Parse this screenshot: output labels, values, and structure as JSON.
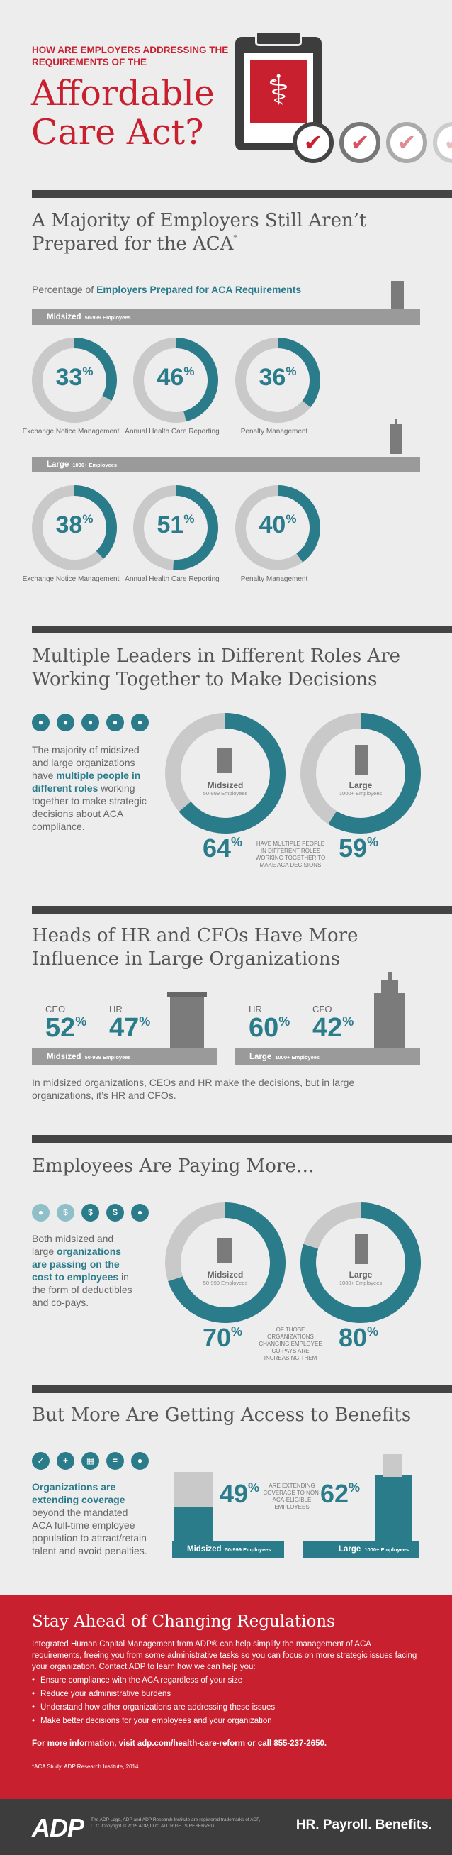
{
  "header": {
    "kicker": "HOW ARE EMPLOYERS ADDRESSING THE REQUIREMENTS OF THE",
    "title": "Affordable Care Act?",
    "clipboard_icon": "caduceus-icon",
    "check_icon": "✔"
  },
  "section1": {
    "title": "A Majority of Employers Still Aren’t Prepared for the ACA",
    "title_sup": "*",
    "subhead_prefix": "Percentage of ",
    "subhead_bold": "Employers Prepared for ACA Requirements",
    "midsized_label": "Midsized",
    "midsized_sub": "50-999 Employees",
    "large_label": "Large",
    "large_sub": "1000+ Employees",
    "pct_symbol": "%",
    "midsized_rings": [
      {
        "value": 33,
        "label": "Exchange Notice Management"
      },
      {
        "value": 46,
        "label": "Annual Health Care Reporting"
      },
      {
        "value": 36,
        "label": "Penalty Management"
      }
    ],
    "large_rings": [
      {
        "value": 38,
        "label": "Exchange Notice Management"
      },
      {
        "value": 51,
        "label": "Annual Health Care Reporting"
      },
      {
        "value": 40,
        "label": "Penalty Management"
      }
    ]
  },
  "section2": {
    "title": "Multiple Leaders in Different Roles Are Working Together to Make Decisions",
    "text_before": "The majority of midsized and large organizations have ",
    "text_bold": "multiple people in different roles",
    "text_after": " working together to make strategic decisions about ACA compliance.",
    "midsized_label": "Midsized",
    "midsized_sub": "50-999 Employees",
    "large_label": "Large",
    "large_sub": "1000+ Employees",
    "midsized_value": 64,
    "large_value": 59,
    "note": "HAVE MULTIPLE PEOPLE IN DIFFERENT ROLES WORKING TOGETHER TO MAKE ACA DECISIONS"
  },
  "section3": {
    "title": "Heads of HR and CFOs Have More Influence in Large Organizations",
    "midsized": {
      "role1": "CEO",
      "pct1": 52,
      "role2": "HR",
      "pct2": 47,
      "label": "Midsized",
      "sub": "50-999 Employees"
    },
    "large": {
      "role1": "HR",
      "pct1": 60,
      "role2": "CFO",
      "pct2": 42,
      "label": "Large",
      "sub": "1000+ Employees"
    },
    "text": "In midsized organizations, CEOs and HR make the decisions, but in large organizations, it’s HR and CFOs."
  },
  "section4": {
    "title": "Employees Are Paying More…",
    "text_before": "Both midsized and large ",
    "text_bold": "organizations are passing on the cost to employees",
    "text_after": " in the form of deductibles and co-pays.",
    "midsized_label": "Midsized",
    "midsized_sub": "50-999 Employees",
    "large_label": "Large",
    "large_sub": "1000+ Employees",
    "midsized_value": 70,
    "large_value": 80,
    "note": "OF THOSE ORGANIZATIONS CHANGING EMPLOYEE CO-PAYS ARE INCREASING THEM"
  },
  "section5": {
    "title": "But More Are Getting Access to Benefits",
    "text_bold": "Organizations are extending coverage",
    "text_after": " beyond the mandated ACA full-time employee population to attract/retain talent and avoid penalties.",
    "midsized_value": 49,
    "large_value": 62,
    "note": "ARE EXTENDING COVERAGE TO NON-ACA-ELIGIBLE EMPLOYEES",
    "midsized_label": "Midsized",
    "midsized_sub": "50-999 Employees",
    "large_label": "Large",
    "large_sub": "1000+ Employees"
  },
  "cta": {
    "title": "Stay Ahead of Changing Regulations",
    "text": "Integrated Human Capital Management from ADP® can help simplify the management of ACA requirements, freeing you from some administrative tasks so you can focus on more strategic issues facing your organization. Contact ADP to learn how we can help you:",
    "bullets": [
      "Ensure compliance with the ACA regardless of your size",
      "Reduce your administrative burdens",
      "Understand how other organizations are addressing these issues",
      "Make better decisions for your employees and your organization"
    ],
    "more": "For more information, visit adp.com/health-care-reform or call 855-237-2650.",
    "footnote": "*ACA Study, ADP Research Institute, 2014."
  },
  "footer": {
    "logo": "ADP",
    "legal": "The ADP Logo, ADP and ADP Research Institute are registered trademarks of ADP, LLC. Copyright © 2015 ADP, LLC. ALL RIGHTS RESERVED.",
    "tagline": "HR. Payroll. Benefits."
  },
  "colors": {
    "red": "#c8202f",
    "teal": "#2b7c8b",
    "gray": "#9a9a9a",
    "ring_track": "#c9c9c9",
    "dark": "#3d3d3d"
  }
}
